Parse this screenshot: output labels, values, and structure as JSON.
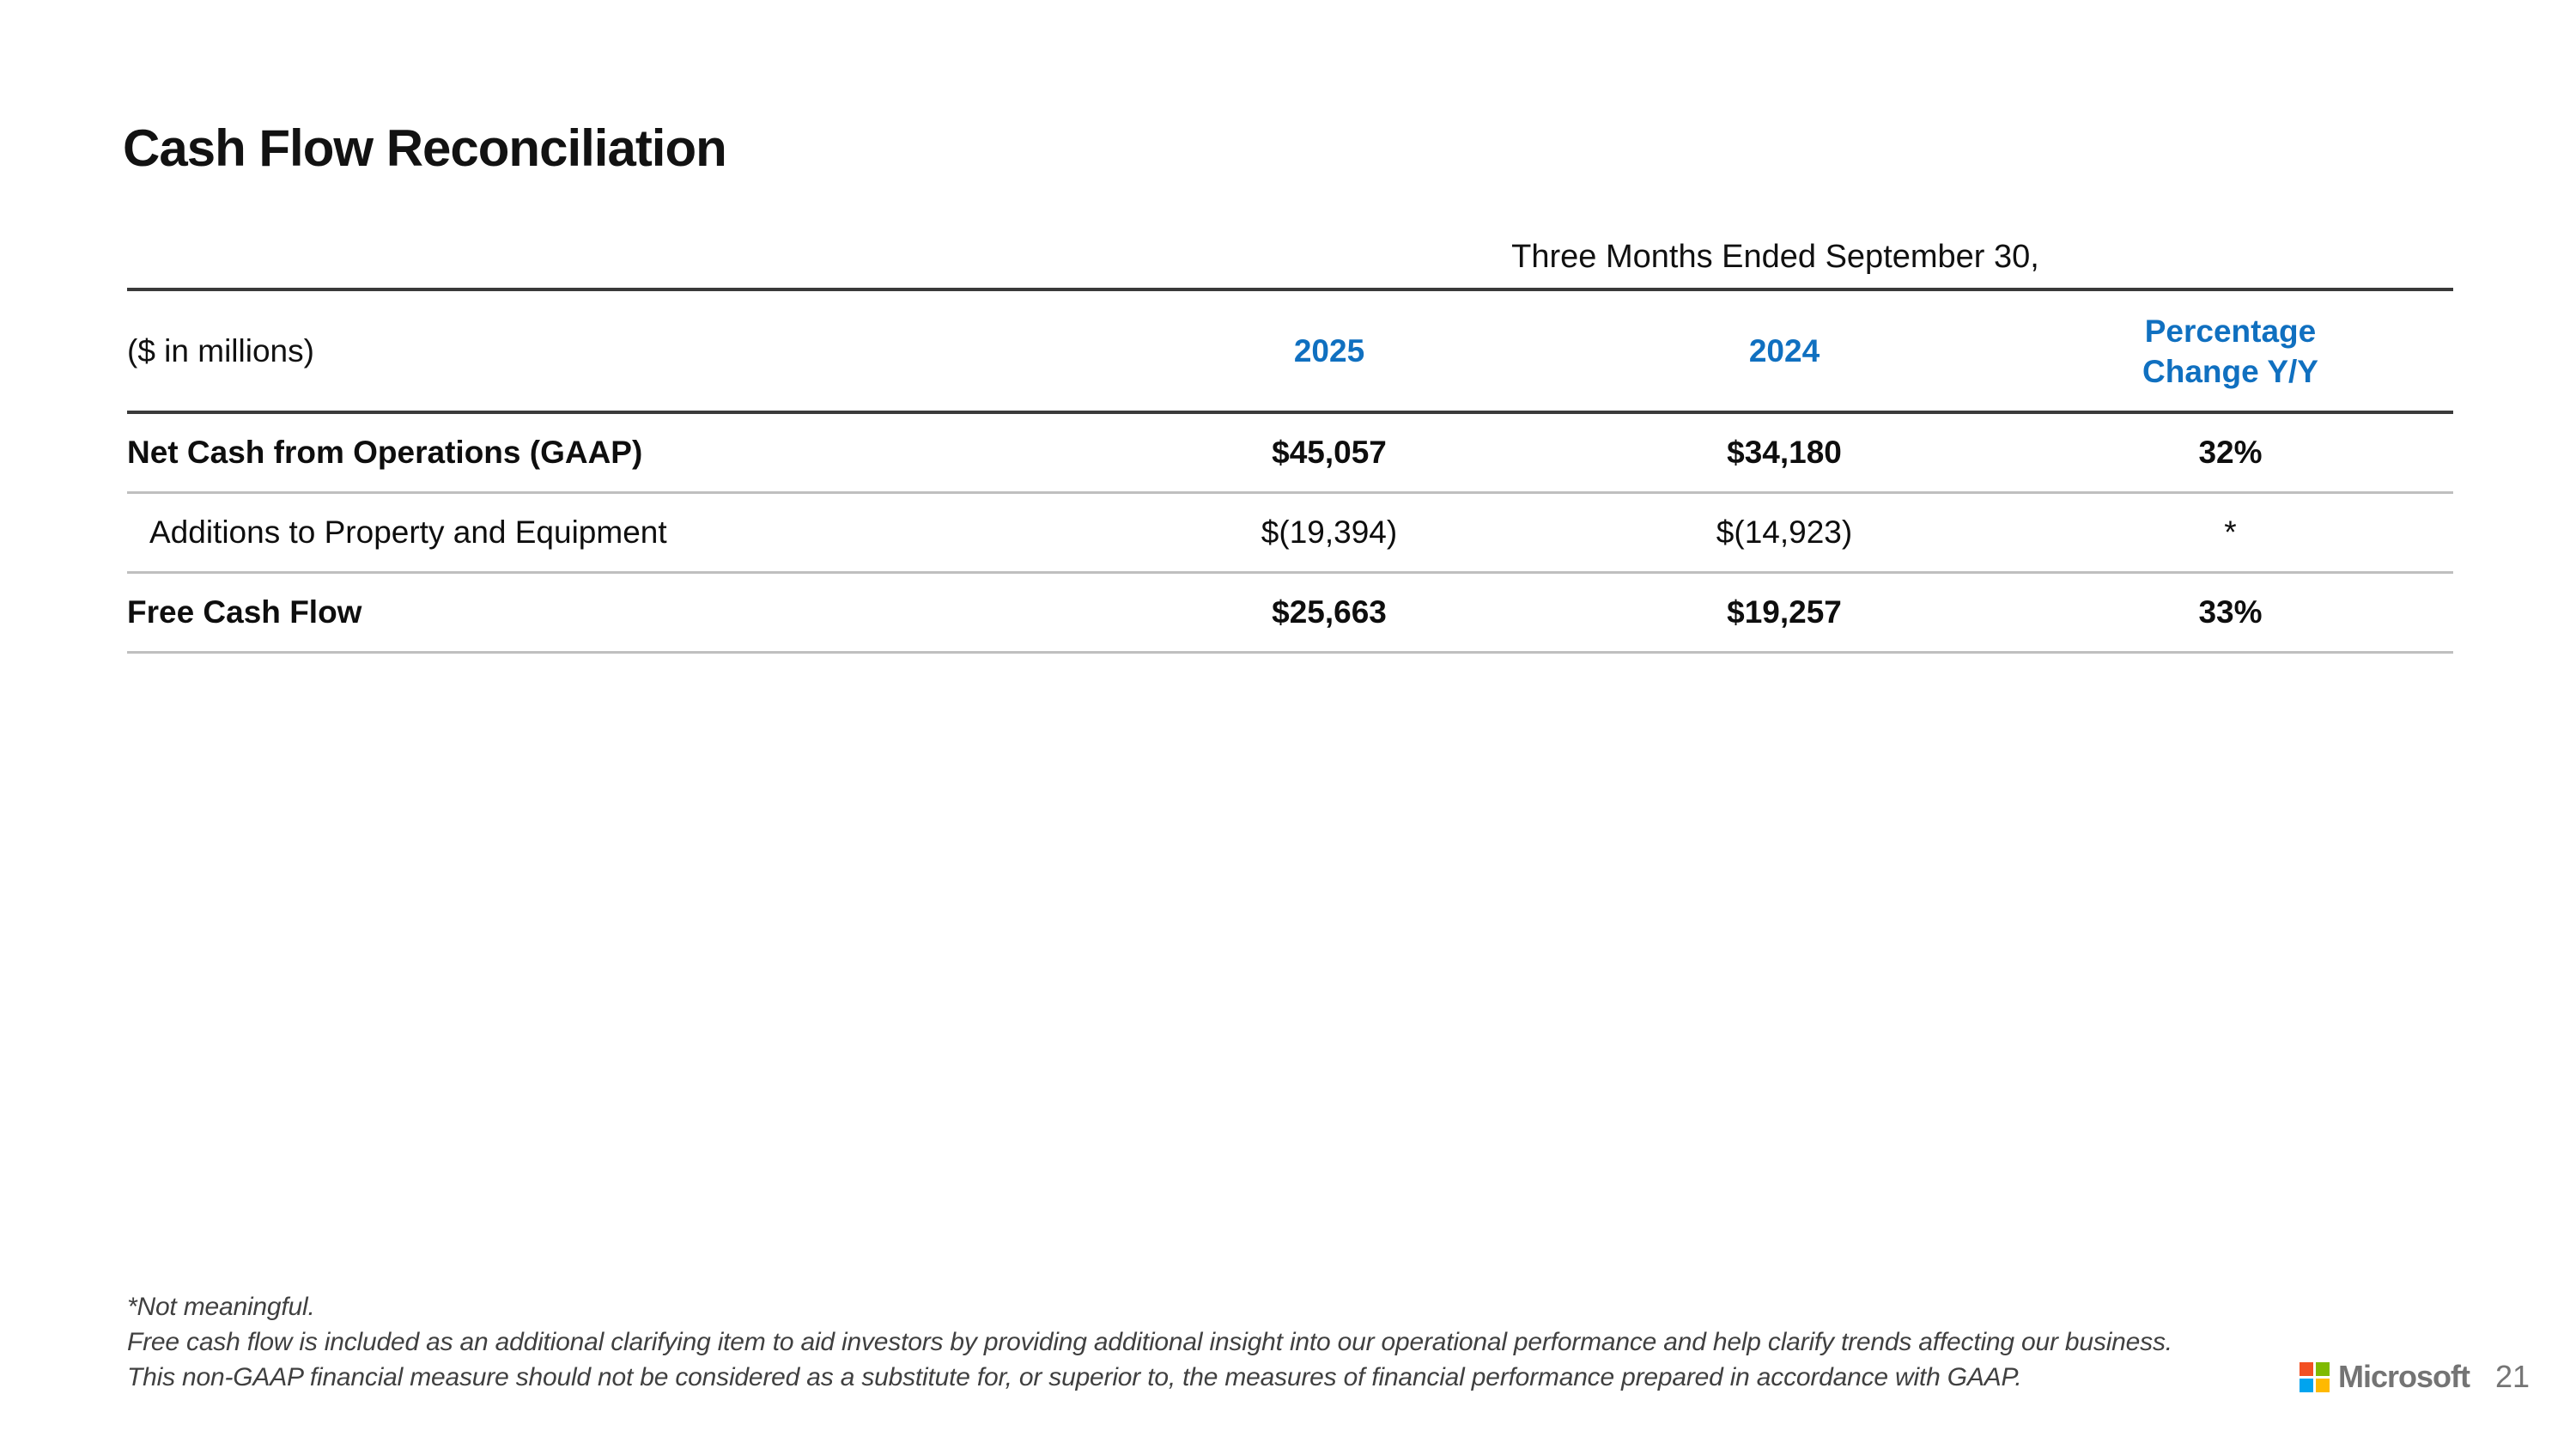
{
  "slide": {
    "title": "Cash Flow Reconciliation"
  },
  "table": {
    "period_header": "Three Months Ended September 30,",
    "unit_label": "($ in millions)",
    "col_year_current": "2025",
    "col_year_prior": "2024",
    "col_change_line1": "Percentage",
    "col_change_line2": "Change Y/Y",
    "rows": [
      {
        "label": "Net Cash from Operations (GAAP)",
        "y2025": "$45,057",
        "y2024": "$34,180",
        "change": "32%"
      },
      {
        "label": "Additions to Property and Equipment",
        "y2025": "$(19,394)",
        "y2024": "$(14,923)",
        "change": "*"
      },
      {
        "label": "Free Cash Flow",
        "y2025": "$25,663",
        "y2024": "$19,257",
        "change": "33%"
      }
    ]
  },
  "footnotes": {
    "not_meaningful": "*Not meaningful.",
    "line1": "Free cash flow is included as an additional clarifying item to aid investors by providing additional insight into our operational performance and help clarify trends affecting our business.",
    "line2": "This non-GAAP financial measure should not be considered as a substitute for, or superior to, the measures of financial performance prepared in accordance with GAAP."
  },
  "footer": {
    "brand": "Microsoft",
    "page_number": "21"
  },
  "colors": {
    "accent_blue": "#1070C0",
    "rule_dark": "#3A3A3A",
    "rule_light": "#BFBFBF",
    "footnote_gray": "#404040",
    "brand_gray": "#747474",
    "page_gray": "#757575",
    "ms_red": "#F25022",
    "ms_green": "#7FBA00",
    "ms_blue": "#00A4EF",
    "ms_yellow": "#FFB900"
  }
}
